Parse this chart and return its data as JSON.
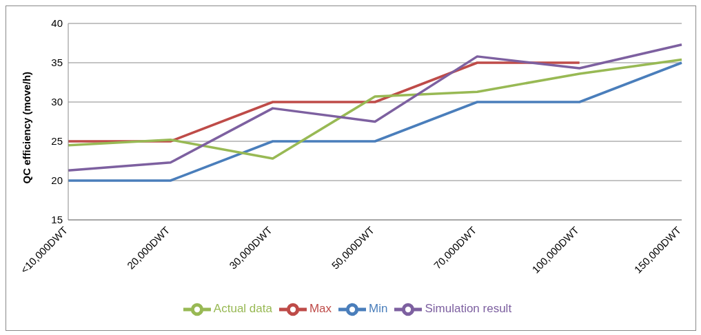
{
  "chart_data": {
    "type": "line",
    "ylabel": "QC efficiency (move/h)",
    "categories": [
      "<10,000DWT",
      "20,000DWT",
      "30,000DWT",
      "50,000DWT",
      "70,000DWT",
      "100,000DWT",
      "150,000DWT"
    ],
    "series": [
      {
        "name": "Min",
        "color": "#4a7ebb",
        "values": [
          20,
          20,
          25,
          25,
          30,
          30,
          35
        ]
      },
      {
        "name": "Max",
        "color": "#be4b48",
        "values": [
          25,
          25,
          30,
          30,
          35,
          35,
          null
        ]
      },
      {
        "name": "Actual data",
        "color": "#98b954",
        "values": [
          24.5,
          25.2,
          22.8,
          30.7,
          31.3,
          33.6,
          35.4
        ]
      },
      {
        "name": "Simulation result",
        "color": "#7d60a0",
        "values": [
          21.3,
          22.3,
          29.2,
          27.5,
          35.8,
          34.3,
          37.3
        ]
      }
    ],
    "ylim": [
      15,
      40
    ],
    "yticks": [
      15,
      20,
      25,
      30,
      35,
      40
    ],
    "grid": "y",
    "legend": "bottom",
    "marker": "none",
    "line_style": "solid"
  }
}
